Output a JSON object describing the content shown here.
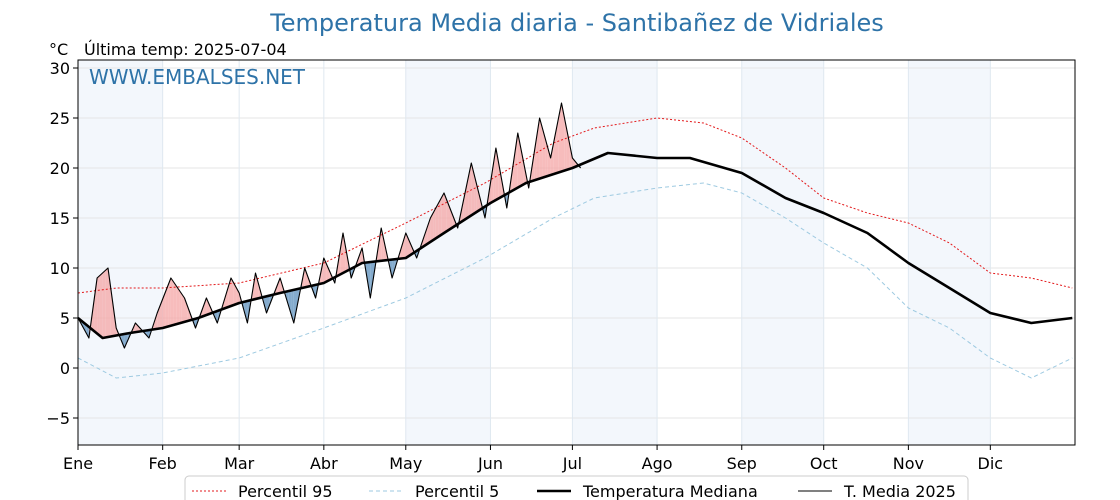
{
  "chart_data": {
    "type": "line",
    "title": "Temperatura Media diaria - Santibañez de Vidriales",
    "unit_label": "°C",
    "last_temp_label": "Última temp: 2025-07-04",
    "watermark": "WWW.EMBALSES.NET",
    "ylim": [
      -7.7,
      30.8
    ],
    "yticks": [
      -5,
      0,
      5,
      10,
      15,
      20,
      25,
      30
    ],
    "grid": true,
    "legend_position": "bottom",
    "x_day_range": [
      1,
      366
    ],
    "months": [
      {
        "label": "Ene",
        "start_day": 1,
        "end_day": 32,
        "shaded": true
      },
      {
        "label": "Feb",
        "start_day": 32,
        "end_day": 60,
        "shaded": false
      },
      {
        "label": "Mar",
        "start_day": 60,
        "end_day": 91,
        "shaded": false
      },
      {
        "label": "Abr",
        "start_day": 91,
        "end_day": 121,
        "shaded": false
      },
      {
        "label": "May",
        "start_day": 121,
        "end_day": 152,
        "shaded": true
      },
      {
        "label": "Jun",
        "start_day": 152,
        "end_day": 182,
        "shaded": false
      },
      {
        "label": "Jul",
        "start_day": 182,
        "end_day": 213,
        "shaded": true
      },
      {
        "label": "Ago",
        "start_day": 213,
        "end_day": 244,
        "shaded": false
      },
      {
        "label": "Sep",
        "start_day": 244,
        "end_day": 274,
        "shaded": true
      },
      {
        "label": "Oct",
        "start_day": 274,
        "end_day": 305,
        "shaded": false
      },
      {
        "label": "Nov",
        "start_day": 305,
        "end_day": 335,
        "shaded": true
      },
      {
        "label": "Dic",
        "start_day": 335,
        "end_day": 366,
        "shaded": false
      }
    ],
    "series": [
      {
        "name": "Percentil 95",
        "color": "#e31a1c",
        "style": "dotted",
        "x": [
          1,
          15,
          32,
          60,
          91,
          121,
          150,
          175,
          190,
          213,
          230,
          244,
          260,
          274,
          290,
          305,
          320,
          335,
          350,
          365
        ],
        "y": [
          7.5,
          8.0,
          8.0,
          8.5,
          10.5,
          14.5,
          18.5,
          22.5,
          24.0,
          25.0,
          24.5,
          23.0,
          20.0,
          17.0,
          15.5,
          14.5,
          12.5,
          9.5,
          9.0,
          8.0
        ]
      },
      {
        "name": "Percentil 5",
        "color": "#9ecae1",
        "style": "dashed",
        "x": [
          1,
          15,
          32,
          60,
          91,
          121,
          150,
          175,
          190,
          213,
          230,
          244,
          260,
          274,
          290,
          305,
          320,
          335,
          350,
          365
        ],
        "y": [
          1.0,
          -1.0,
          -0.5,
          1.0,
          4.0,
          7.0,
          11.0,
          15.0,
          17.0,
          18.0,
          18.5,
          17.5,
          15.0,
          12.5,
          10.0,
          6.0,
          4.0,
          1.0,
          -1.0,
          1.0
        ]
      },
      {
        "name": "Temperatura Mediana",
        "color": "#000000",
        "style": "solid-thick",
        "x": [
          1,
          10,
          20,
          32,
          45,
          60,
          75,
          91,
          105,
          121,
          135,
          152,
          165,
          182,
          195,
          213,
          225,
          244,
          260,
          274,
          290,
          305,
          320,
          335,
          350,
          365
        ],
        "y": [
          5.0,
          3.0,
          3.5,
          4.0,
          5.0,
          6.5,
          7.5,
          8.5,
          10.5,
          11.0,
          13.5,
          16.5,
          18.5,
          20.0,
          21.5,
          21.0,
          21.0,
          19.5,
          17.0,
          15.5,
          13.5,
          10.5,
          8.0,
          5.5,
          4.5,
          5.0
        ]
      },
      {
        "name": "T. Media 2025",
        "color": "#000000",
        "style": "solid-thin",
        "x": [
          1,
          5,
          8,
          12,
          15,
          18,
          22,
          27,
          30,
          35,
          40,
          44,
          48,
          52,
          57,
          60,
          63,
          66,
          70,
          75,
          80,
          84,
          88,
          91,
          95,
          98,
          101,
          105,
          108,
          112,
          116,
          121,
          125,
          130,
          135,
          140,
          145,
          150,
          154,
          158,
          162,
          166,
          170,
          174,
          178,
          182,
          185
        ],
        "y": [
          5.0,
          3.0,
          9.0,
          10.0,
          4.0,
          2.0,
          4.5,
          3.0,
          5.5,
          9.0,
          7.0,
          4.0,
          7.0,
          4.5,
          9.0,
          7.5,
          4.5,
          9.5,
          5.5,
          9.0,
          4.5,
          10.0,
          7.0,
          11.0,
          8.5,
          13.5,
          9.0,
          12.0,
          7.0,
          14.0,
          9.0,
          13.5,
          11.0,
          15.0,
          17.5,
          14.0,
          20.5,
          15.0,
          22.0,
          16.0,
          23.5,
          18.0,
          25.0,
          21.0,
          26.5,
          21.0,
          20.0
        ]
      }
    ],
    "legend": [
      "Percentil 95",
      "Percentil 5",
      "Temperatura Mediana",
      "T. Media 2025"
    ]
  }
}
